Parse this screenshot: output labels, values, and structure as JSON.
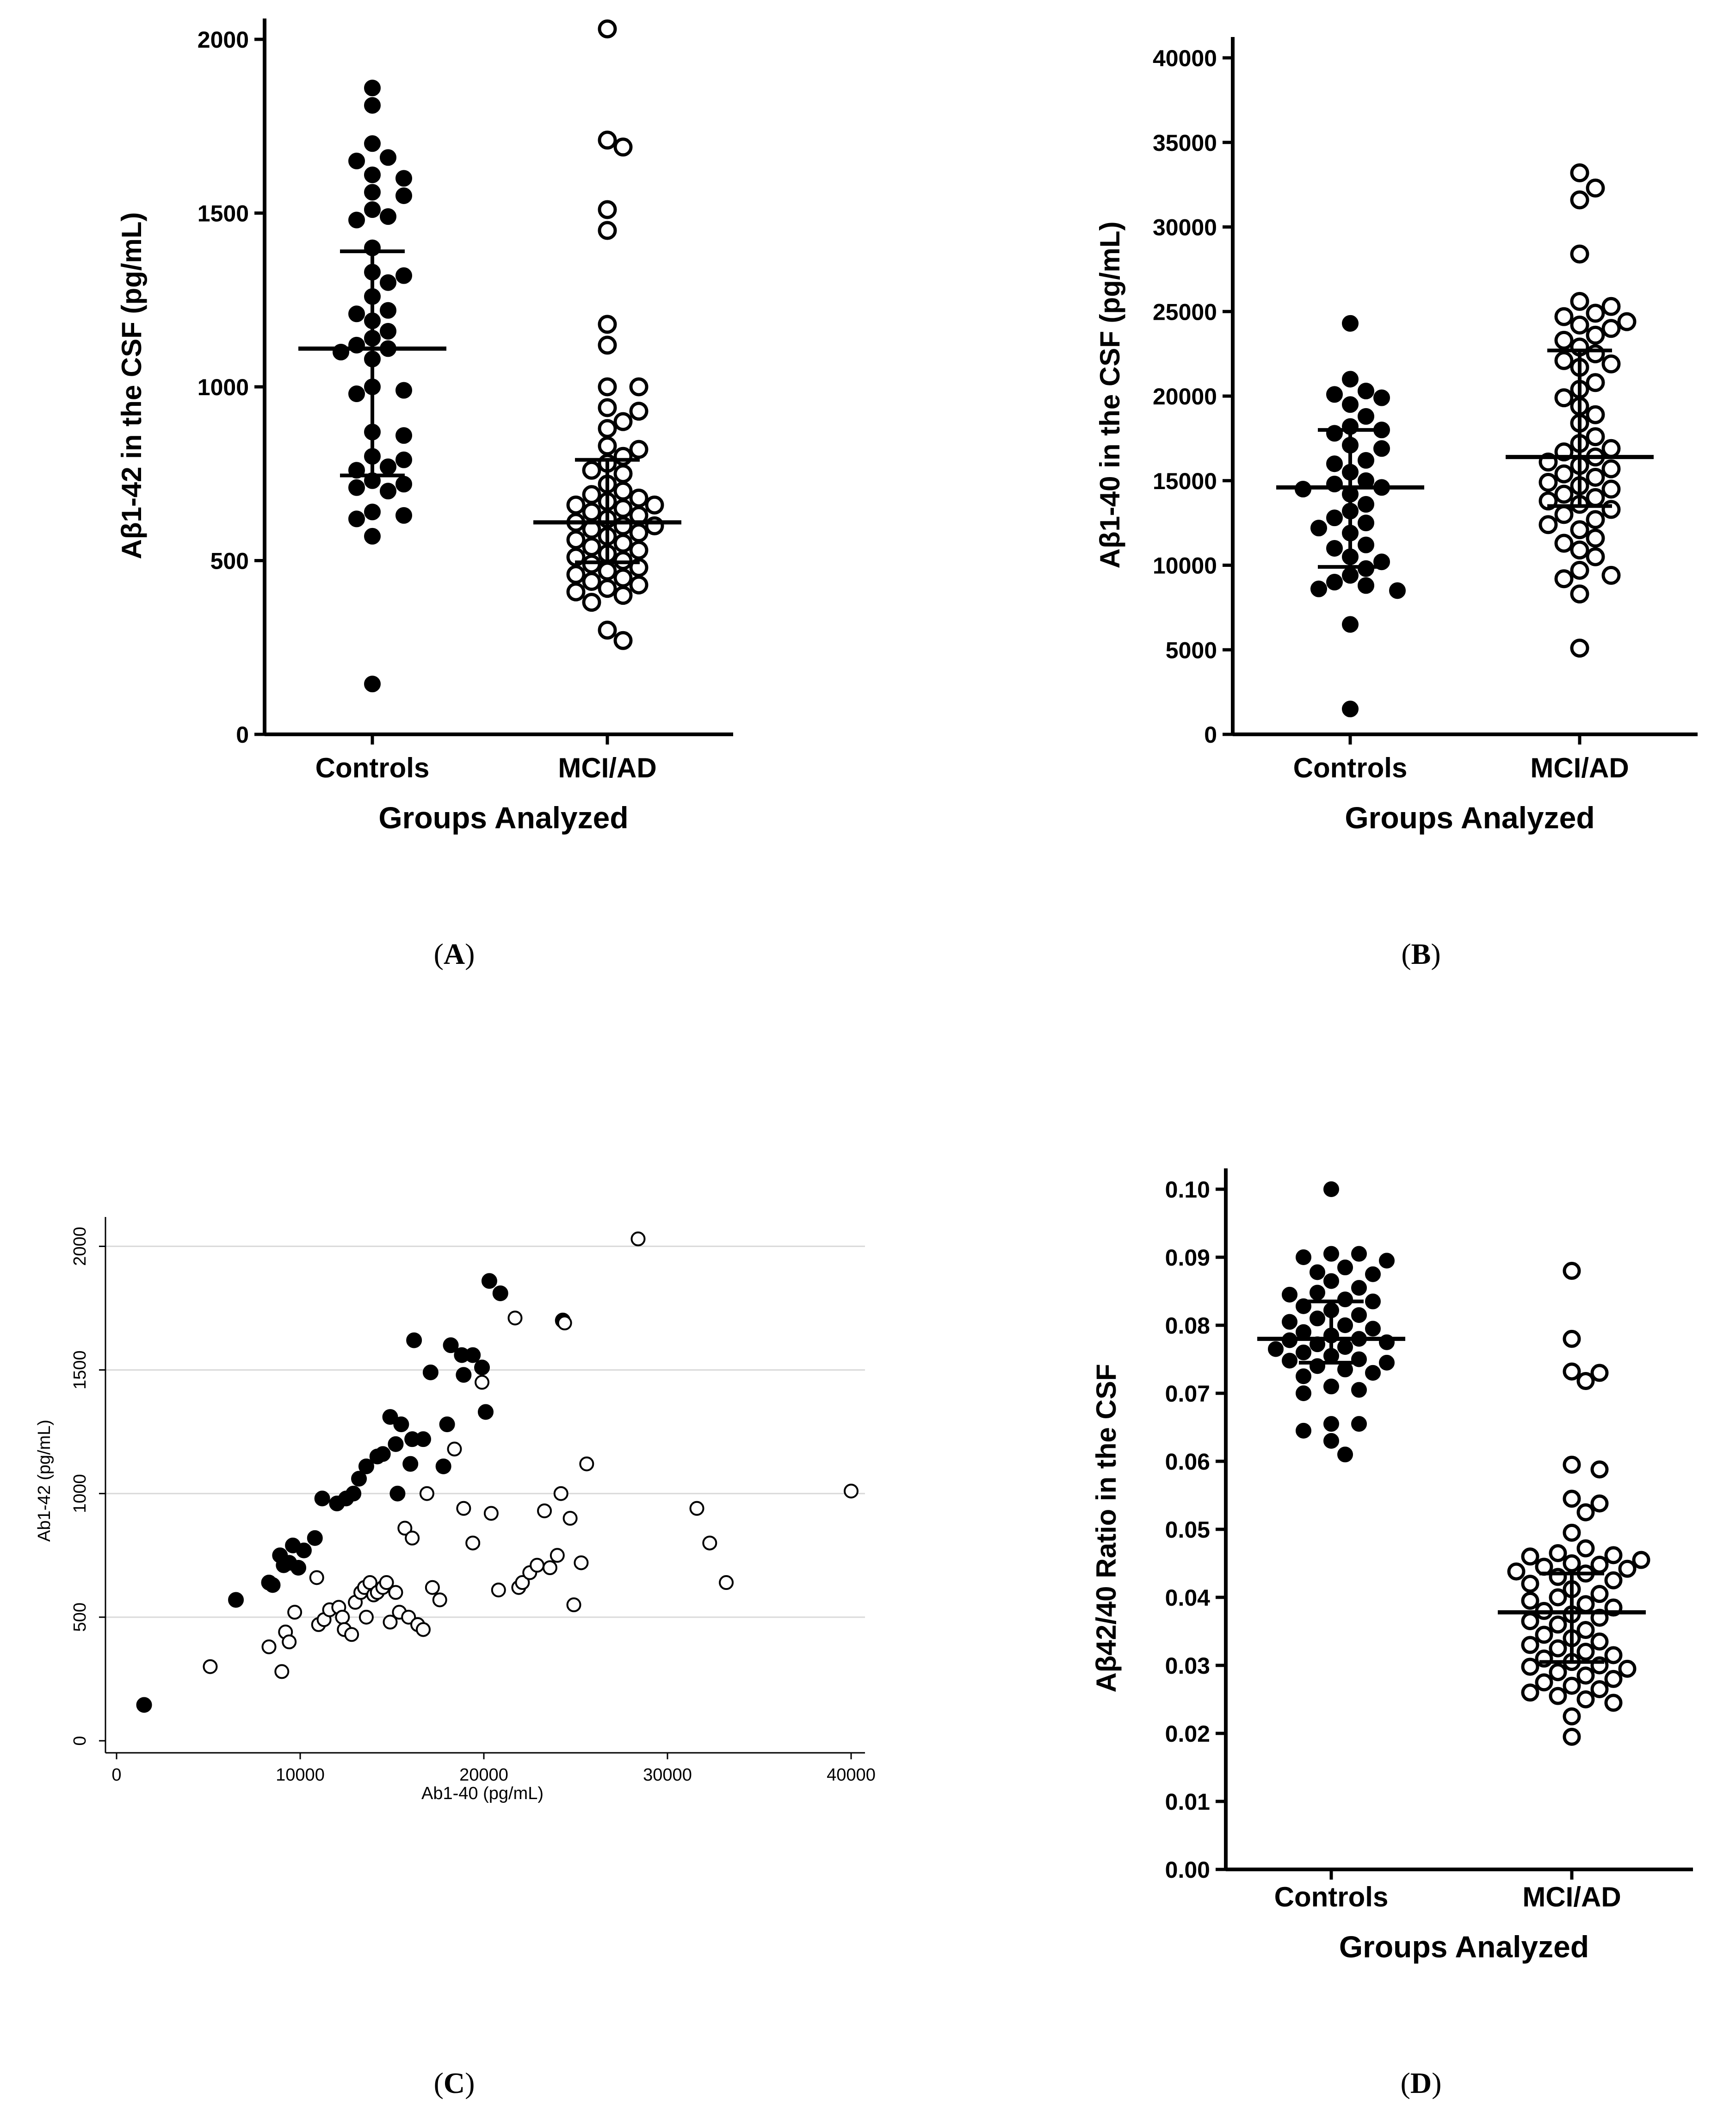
{
  "panels": {
    "A": {
      "label_prefix": "(",
      "label_letter": "A",
      "label_suffix": ")"
    },
    "B": {
      "label_prefix": "(",
      "label_letter": "B",
      "label_suffix": ")"
    },
    "C": {
      "label_prefix": "(",
      "label_letter": "C",
      "label_suffix": ")"
    },
    "D": {
      "label_prefix": "(",
      "label_letter": "D",
      "label_suffix": ")"
    }
  },
  "chart_data": [
    {
      "id": "A",
      "type": "scatter",
      "title": "",
      "xlabel": "Groups Analyzed",
      "ylabel": "Aβ1-42 in the CSF (pg/mL)",
      "categories": [
        "Controls",
        "MCI/AD"
      ],
      "ylim": [
        0,
        2100
      ],
      "yticks": [
        0,
        500,
        1000,
        1500,
        2000
      ],
      "ytick_labels": [
        "0",
        "500",
        "1000",
        "1500",
        "2000"
      ],
      "grid": false,
      "series": [
        {
          "name": "",
          "category": "Controls",
          "marker": "filled",
          "values": [
            1860,
            1810,
            1700,
            1660,
            1650,
            1610,
            1600,
            1560,
            1550,
            1510,
            1490,
            1480,
            1400,
            1330,
            1320,
            1300,
            1260,
            1220,
            1210,
            1190,
            1160,
            1140,
            1120,
            1110,
            1100,
            1080,
            1000,
            990,
            980,
            870,
            860,
            800,
            790,
            770,
            760,
            730,
            720,
            710,
            700,
            640,
            630,
            620,
            570,
            145
          ],
          "median": 1110,
          "q1": 745,
          "q3": 1390
        },
        {
          "name": "",
          "category": "MCI/AD",
          "marker": "open",
          "values": [
            2030,
            1710,
            1690,
            1510,
            1450,
            1180,
            1120,
            1000,
            1000,
            940,
            930,
            900,
            880,
            830,
            820,
            800,
            780,
            760,
            750,
            720,
            700,
            690,
            680,
            670,
            660,
            660,
            650,
            640,
            630,
            620,
            610,
            600,
            600,
            590,
            580,
            570,
            560,
            550,
            540,
            530,
            520,
            510,
            500,
            490,
            480,
            470,
            460,
            450,
            440,
            430,
            420,
            410,
            400,
            380,
            300,
            270
          ],
          "median": 610,
          "q1": 495,
          "q3": 790
        }
      ]
    },
    {
      "id": "B",
      "type": "scatter",
      "title": "",
      "xlabel": "Groups Analyzed",
      "ylabel": "Aβ1-40 in the CSF (pg/mL)",
      "categories": [
        "Controls",
        "MCI/AD"
      ],
      "ylim": [
        0,
        40000
      ],
      "yticks": [
        0,
        5000,
        10000,
        15000,
        20000,
        25000,
        30000,
        35000,
        40000
      ],
      "ytick_labels": [
        "0",
        "5000",
        "10000",
        "15000",
        "20000",
        "25000",
        "30000",
        "35000",
        "40000"
      ],
      "grid": false,
      "series": [
        {
          "name": "",
          "category": "Controls",
          "marker": "filled",
          "values": [
            24300,
            21000,
            20300,
            20100,
            19900,
            19500,
            18800,
            18200,
            18000,
            17800,
            17100,
            16900,
            16200,
            16000,
            15500,
            15000,
            14800,
            14600,
            14500,
            14200,
            13600,
            13200,
            12800,
            12500,
            12200,
            11900,
            11200,
            11000,
            10500,
            10200,
            9800,
            9400,
            9000,
            8800,
            8600,
            8500,
            6500,
            1500
          ],
          "median": 14600,
          "q1": 9900,
          "q3": 18000
        },
        {
          "name": "",
          "category": "MCI/AD",
          "marker": "open",
          "values": [
            33200,
            32300,
            31600,
            28400,
            25600,
            25300,
            24900,
            24700,
            24400,
            24200,
            24000,
            23600,
            23300,
            22900,
            22500,
            22100,
            21900,
            21700,
            20800,
            20400,
            19900,
            19400,
            18900,
            18400,
            17600,
            17200,
            16900,
            16700,
            16400,
            16100,
            15900,
            15700,
            15400,
            15200,
            14900,
            14700,
            14500,
            14200,
            14000,
            13800,
            13600,
            13300,
            13000,
            12700,
            12400,
            12100,
            11600,
            11300,
            10900,
            10500,
            9700,
            9400,
            9200,
            8300,
            5100
          ],
          "median": 16400,
          "q1": 13500,
          "q3": 22700
        }
      ]
    },
    {
      "id": "C",
      "type": "scatter",
      "title": "",
      "xlabel": "Ab1-40 (pg/mL)",
      "ylabel": "Ab1-42 (pg/mL)",
      "xlim": [
        0,
        40000
      ],
      "ylim": [
        0,
        2100
      ],
      "xticks": [
        0,
        10000,
        20000,
        30000,
        40000
      ],
      "xtick_labels": [
        "0",
        "10000",
        "20000",
        "30000",
        "40000"
      ],
      "yticks": [
        0,
        500,
        1000,
        1500,
        2000
      ],
      "ytick_labels": [
        "0",
        "500",
        "1000",
        "1500",
        "2000"
      ],
      "grid": true,
      "series": [
        {
          "name": "",
          "marker": "filled",
          "x": [
            1500,
            6500,
            8300,
            8500,
            8900,
            9100,
            9400,
            9600,
            9900,
            10200,
            10800,
            11200,
            12000,
            12500,
            12900,
            13200,
            13600,
            14200,
            14500,
            14900,
            15200,
            15500,
            15300,
            16000,
            16200,
            16100,
            16700,
            17100,
            17800,
            18000,
            18200,
            18800,
            18900,
            19400,
            19900,
            20100,
            20300,
            20900,
            24300
          ],
          "y": [
            145,
            570,
            640,
            630,
            750,
            710,
            720,
            790,
            700,
            770,
            820,
            980,
            960,
            980,
            1000,
            1060,
            1110,
            1150,
            1160,
            1310,
            1200,
            1280,
            1000,
            1120,
            1620,
            1220,
            1220,
            1490,
            1110,
            1280,
            1600,
            1560,
            1480,
            1560,
            1510,
            1330,
            1860,
            1810,
            1700
          ]
        },
        {
          "name": "",
          "marker": "open",
          "x": [
            5100,
            8300,
            9000,
            9200,
            9400,
            9700,
            10900,
            11000,
            11300,
            11600,
            12100,
            12300,
            12400,
            12800,
            13000,
            13300,
            13500,
            13600,
            13800,
            14000,
            14200,
            14500,
            14700,
            14900,
            15200,
            15400,
            15700,
            15900,
            16100,
            16400,
            16700,
            16900,
            17200,
            17600,
            18400,
            18900,
            19400,
            19900,
            20400,
            20800,
            21700,
            21900,
            22100,
            22500,
            22900,
            23300,
            23600,
            24000,
            24200,
            24400,
            24700,
            24900,
            25300,
            25600,
            28400,
            31600,
            32300,
            33200,
            40000
          ],
          "y": [
            300,
            380,
            280,
            440,
            400,
            520,
            660,
            470,
            490,
            530,
            540,
            500,
            450,
            430,
            560,
            600,
            620,
            500,
            640,
            590,
            600,
            620,
            640,
            480,
            600,
            520,
            860,
            500,
            820,
            470,
            450,
            1000,
            620,
            570,
            1180,
            940,
            800,
            1450,
            920,
            610,
            1710,
            620,
            640,
            680,
            710,
            930,
            700,
            750,
            1000,
            1690,
            900,
            550,
            720,
            1120,
            2030,
            940,
            800,
            640,
            1010
          ]
        }
      ]
    },
    {
      "id": "D",
      "type": "scatter",
      "title": "",
      "xlabel": "Groups Analyzed",
      "ylabel": "Aβ42/40 Ratio in the CSF",
      "categories": [
        "Controls",
        "MCI/AD"
      ],
      "ylim": [
        0,
        0.105
      ],
      "yticks": [
        0.0,
        0.01,
        0.02,
        0.03,
        0.04,
        0.05,
        0.06,
        0.07,
        0.08,
        0.09,
        0.1
      ],
      "ytick_labels": [
        "0.00",
        "0.01",
        "0.02",
        "0.03",
        "0.04",
        "0.05",
        "0.06",
        "0.07",
        "0.08",
        "0.09",
        "0.10"
      ],
      "grid": false,
      "series": [
        {
          "name": "",
          "category": "Controls",
          "marker": "filled",
          "values": [
            0.1,
            0.0905,
            0.0905,
            0.09,
            0.0895,
            0.0885,
            0.0878,
            0.0875,
            0.0865,
            0.0855,
            0.0848,
            0.0845,
            0.0838,
            0.0835,
            0.0828,
            0.0822,
            0.0815,
            0.081,
            0.0805,
            0.08,
            0.0795,
            0.079,
            0.0785,
            0.078,
            0.0778,
            0.0775,
            0.0772,
            0.0768,
            0.0765,
            0.076,
            0.0755,
            0.075,
            0.0748,
            0.0745,
            0.074,
            0.0735,
            0.073,
            0.0725,
            0.071,
            0.0705,
            0.07,
            0.0655,
            0.0655,
            0.0645,
            0.063,
            0.061
          ],
          "median": 0.078,
          "q1": 0.0745,
          "q3": 0.0835
        },
        {
          "name": "",
          "category": "MCI/AD",
          "marker": "open",
          "values": [
            0.088,
            0.078,
            0.0732,
            0.073,
            0.0718,
            0.0595,
            0.0588,
            0.0545,
            0.0538,
            0.0525,
            0.0495,
            0.0472,
            0.0465,
            0.0462,
            0.046,
            0.0455,
            0.045,
            0.0448,
            0.0445,
            0.0442,
            0.0438,
            0.0435,
            0.043,
            0.0425,
            0.042,
            0.0412,
            0.0405,
            0.04,
            0.0395,
            0.039,
            0.0385,
            0.038,
            0.0375,
            0.037,
            0.0365,
            0.036,
            0.0352,
            0.0345,
            0.034,
            0.0335,
            0.033,
            0.0325,
            0.032,
            0.0315,
            0.031,
            0.0305,
            0.03,
            0.0298,
            0.0295,
            0.029,
            0.0285,
            0.028,
            0.0275,
            0.027,
            0.0265,
            0.026,
            0.0255,
            0.025,
            0.0245,
            0.0225,
            0.0195
          ],
          "median": 0.0378,
          "q1": 0.0305,
          "q3": 0.0435
        }
      ]
    }
  ]
}
